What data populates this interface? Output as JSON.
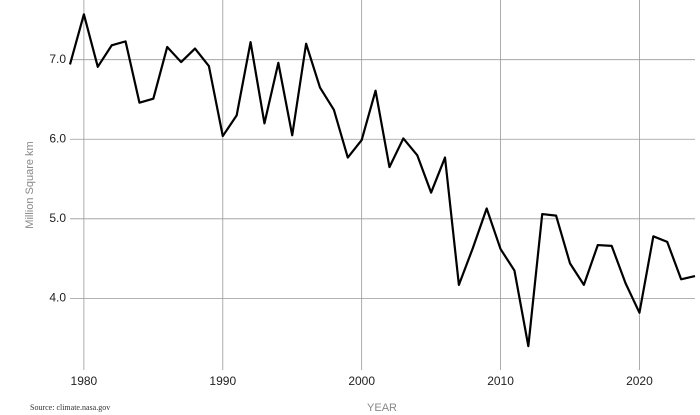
{
  "chart_data": {
    "type": "line",
    "x_label": "YEAR",
    "y_label": "Million Square km",
    "source": "Source: climate.nasa.gov",
    "x": [
      1979,
      1980,
      1981,
      1982,
      1983,
      1984,
      1985,
      1986,
      1987,
      1988,
      1989,
      1990,
      1991,
      1992,
      1993,
      1994,
      1995,
      1996,
      1997,
      1998,
      1999,
      2000,
      2001,
      2002,
      2003,
      2004,
      2005,
      2006,
      2007,
      2008,
      2009,
      2010,
      2011,
      2012,
      2013,
      2014,
      2015,
      2016,
      2017,
      2018,
      2019,
      2020,
      2021,
      2022,
      2023,
      2024
    ],
    "series": [
      {
        "color": "#000000",
        "values": [
          6.94,
          7.57,
          6.91,
          7.18,
          7.23,
          6.46,
          6.51,
          7.16,
          6.97,
          7.14,
          6.92,
          6.04,
          6.3,
          7.22,
          6.2,
          6.96,
          6.05,
          7.2,
          6.65,
          6.37,
          5.77,
          5.99,
          6.61,
          5.65,
          6.01,
          5.8,
          5.33,
          5.77,
          4.17,
          4.63,
          5.13,
          4.62,
          4.35,
          3.4,
          5.06,
          5.04,
          4.44,
          4.17,
          4.67,
          4.66,
          4.19,
          3.82,
          4.78,
          4.71,
          4.24,
          4.28
        ]
      }
    ],
    "xlim": [
      1979,
      2024
    ],
    "xticks": [
      1980,
      1990,
      2000,
      2010,
      2020
    ],
    "ylim": [
      3.1,
      7.75
    ],
    "yticks": [
      {
        "value": 4,
        "label": "4.0"
      },
      {
        "value": 5,
        "label": "5.0"
      },
      {
        "value": 6,
        "label": "6.0"
      },
      {
        "value": 7,
        "label": "7.0"
      }
    ],
    "grid": true
  }
}
